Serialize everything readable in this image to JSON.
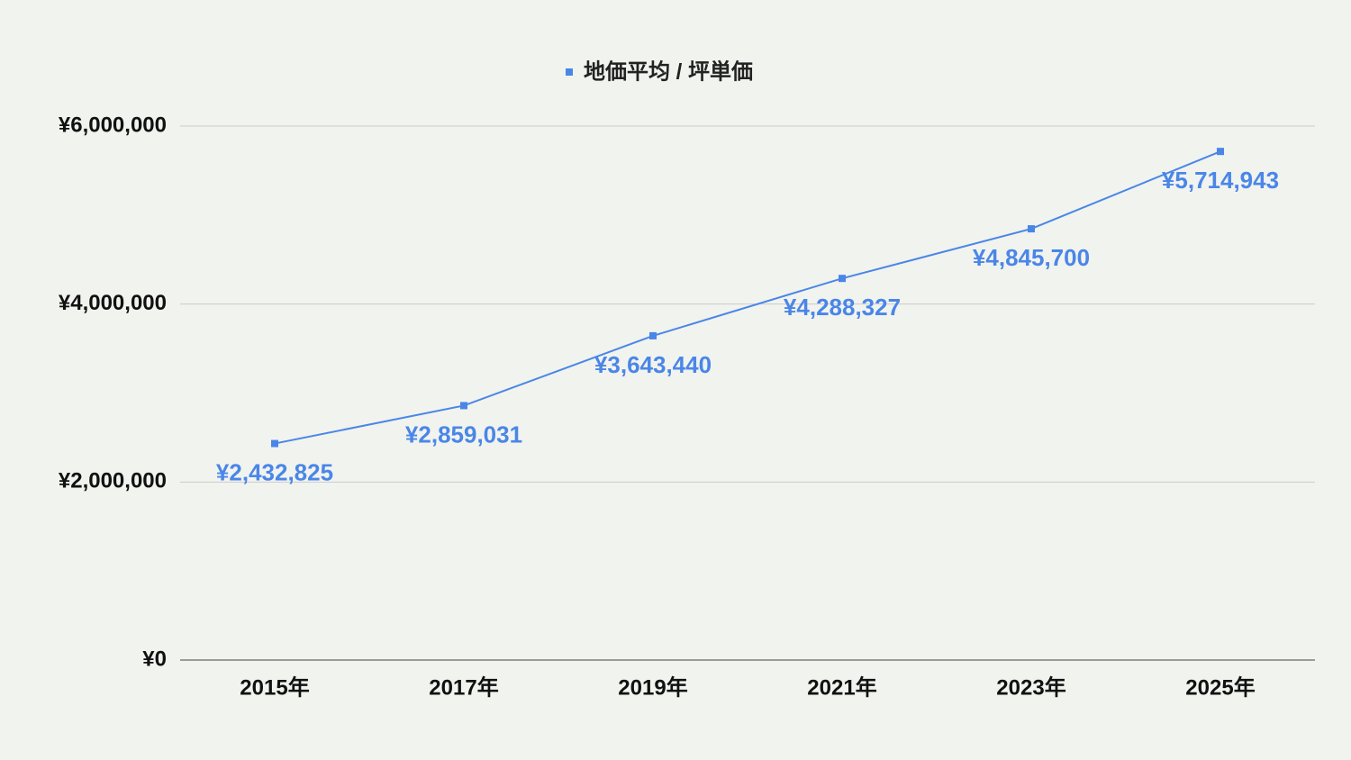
{
  "chart_data": {
    "type": "line",
    "categories": [
      "2015年",
      "2017年",
      "2019年",
      "2021年",
      "2023年",
      "2025年"
    ],
    "series": [
      {
        "name": "地価平均 / 坪単価",
        "color": "#4a86e8",
        "values": [
          2432825,
          2859031,
          3643440,
          4288327,
          4845700,
          5714943
        ],
        "value_labels": [
          "¥2,432,825",
          "¥2,859,031",
          "¥3,643,440",
          "¥4,288,327",
          "¥4,845,700",
          "¥5,714,943"
        ]
      }
    ],
    "ylim": [
      0,
      6000000
    ],
    "yticks": [
      {
        "value": 0,
        "label": "¥0"
      },
      {
        "value": 2000000,
        "label": "¥2,000,000"
      },
      {
        "value": 4000000,
        "label": "¥4,000,000"
      },
      {
        "value": 6000000,
        "label": "¥6,000,000"
      }
    ],
    "grid": true,
    "legend": "top"
  }
}
